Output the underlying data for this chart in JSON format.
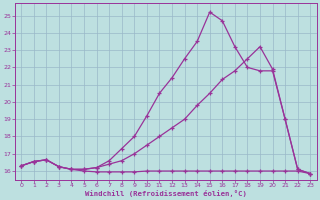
{
  "xlabel": "Windchill (Refroidissement éolien,°C)",
  "bg_color": "#bde0e0",
  "grid_color": "#9ab8c8",
  "line_color": "#993399",
  "xlim": [
    -0.5,
    23.5
  ],
  "ylim": [
    15.5,
    25.7
  ],
  "xticks": [
    0,
    1,
    2,
    3,
    4,
    5,
    6,
    7,
    8,
    9,
    10,
    11,
    12,
    13,
    14,
    15,
    16,
    17,
    18,
    19,
    20,
    21,
    22,
    23
  ],
  "yticks": [
    16,
    17,
    18,
    19,
    20,
    21,
    22,
    23,
    24,
    25
  ],
  "line1": {
    "x": [
      0,
      1,
      2,
      3,
      4,
      5,
      6,
      7,
      8,
      9,
      10,
      11,
      12,
      13,
      14,
      15,
      16,
      17,
      18,
      19,
      20,
      21,
      22,
      23
    ],
    "y": [
      16.3,
      16.55,
      16.65,
      16.25,
      16.1,
      16.0,
      15.95,
      15.95,
      15.95,
      15.95,
      16.0,
      16.0,
      16.0,
      16.0,
      16.0,
      16.0,
      16.0,
      16.0,
      16.0,
      16.0,
      16.0,
      16.0,
      16.0,
      15.85
    ]
  },
  "line2": {
    "x": [
      0,
      1,
      2,
      3,
      4,
      5,
      6,
      7,
      8,
      9,
      10,
      11,
      12,
      13,
      14,
      15,
      16,
      17,
      18,
      19,
      20,
      21,
      22,
      23
    ],
    "y": [
      16.3,
      16.55,
      16.65,
      16.25,
      16.1,
      16.1,
      16.2,
      16.4,
      16.6,
      17.0,
      17.5,
      18.0,
      18.5,
      19.0,
      19.8,
      20.5,
      21.3,
      21.8,
      22.5,
      23.2,
      21.9,
      19.0,
      16.1,
      15.85
    ]
  },
  "line3": {
    "x": [
      0,
      1,
      2,
      3,
      4,
      5,
      6,
      7,
      8,
      9,
      10,
      11,
      12,
      13,
      14,
      15,
      16,
      17,
      18,
      19,
      20,
      21,
      22,
      23
    ],
    "y": [
      16.3,
      16.55,
      16.65,
      16.25,
      16.1,
      16.1,
      16.2,
      16.6,
      17.3,
      18.0,
      19.2,
      20.5,
      21.4,
      22.5,
      23.5,
      25.2,
      24.7,
      23.2,
      22.0,
      21.8,
      21.8,
      19.0,
      16.1,
      15.85
    ]
  }
}
